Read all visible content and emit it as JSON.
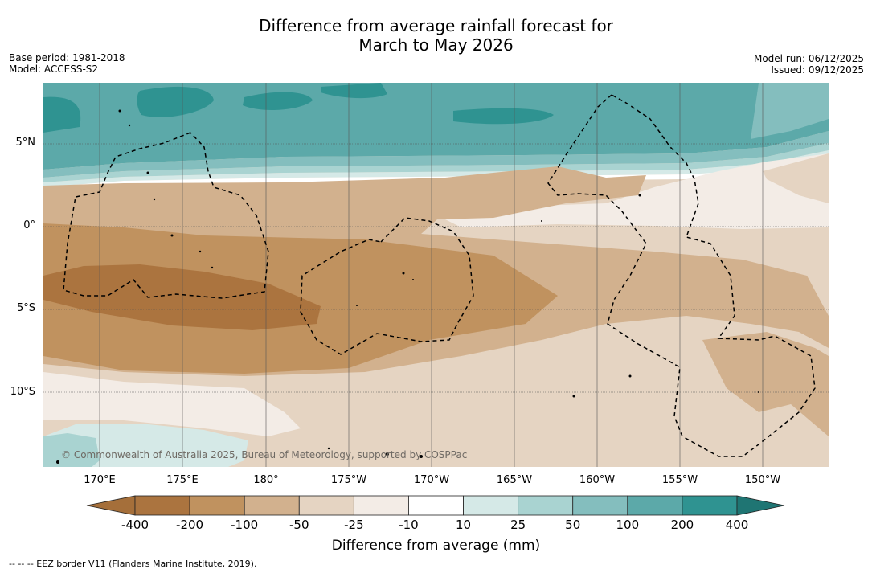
{
  "title": {
    "line1": "Difference from average rainfall forecast for",
    "line2": "March to May 2026"
  },
  "meta": {
    "base_period": "Base period: 1981-2018",
    "model": "Model: ACCESS-S2",
    "model_run": "Model run: 06/12/2025",
    "issued": "Issued: 09/12/2025"
  },
  "map": {
    "lat_labels": [
      "5°N",
      "0°",
      "5°S",
      "10°S"
    ],
    "lon_labels": [
      "170°E",
      "175°E",
      "180°",
      "175°W",
      "170°W",
      "165°W",
      "160°W",
      "155°W",
      "150°W"
    ],
    "copyright": "© Commonwealth of Australia 2025, Bureau of Meteorology, supported by COSPPac"
  },
  "colorbar": {
    "ticks": [
      "-400",
      "-200",
      "-100",
      "-50",
      "-25",
      "-10",
      "10",
      "25",
      "50",
      "100",
      "200",
      "400"
    ],
    "colors": [
      "#a56f3a",
      "#ab743f",
      "#c0925f",
      "#d2b18e",
      "#e5d4c2",
      "#f3ece6",
      "#ffffff",
      "#d5e9e7",
      "#a9d3d1",
      "#84bebe",
      "#5ca9a9",
      "#2f9391",
      "#1f7573"
    ],
    "label": "Difference from average (mm)"
  },
  "footer": {
    "eez": "--  --  -- EEZ border V11 (Flanders Marine Institute, 2019)."
  }
}
